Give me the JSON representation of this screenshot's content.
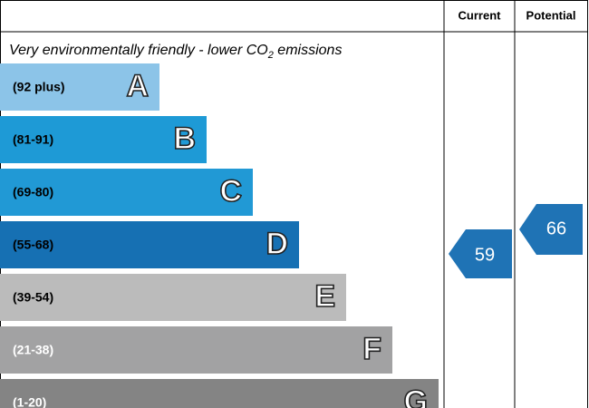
{
  "header": {
    "current": "Current",
    "potential": "Potential"
  },
  "caption": {
    "text": "Very environmentally friendly - lower CO",
    "subscript": "2",
    "suffix": " emissions"
  },
  "bands": [
    {
      "range": "(92 plus)",
      "letter": "A"
    },
    {
      "range": "(81-91)",
      "letter": "B"
    },
    {
      "range": "(69-80)",
      "letter": "C"
    },
    {
      "range": "(55-68)",
      "letter": "D"
    },
    {
      "range": "(39-54)",
      "letter": "E"
    },
    {
      "range": "(21-38)",
      "letter": "F"
    },
    {
      "range": "(1-20)",
      "letter": "G"
    }
  ],
  "current": 59,
  "potential": 66
}
